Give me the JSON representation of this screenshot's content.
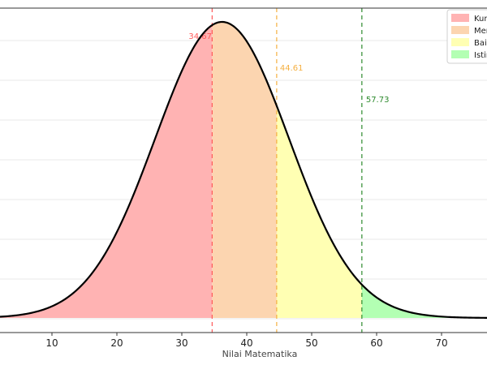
{
  "chart_data": {
    "type": "area",
    "xlabel": "Nilai Matematika",
    "x_ticks": [
      10,
      20,
      30,
      40,
      50,
      60,
      70
    ],
    "xlim": [
      2,
      77
    ],
    "ylim": [
      0,
      1
    ],
    "distribution": {
      "mean": 36.2,
      "sd": 10.3
    },
    "thresholds": [
      {
        "value": 34.67,
        "label": "34.67",
        "color": "#ff5a5a"
      },
      {
        "value": 44.61,
        "label": "44.61",
        "color": "#f5b042"
      },
      {
        "value": 57.73,
        "label": "57.73",
        "color": "#2e8b2e"
      }
    ],
    "regions": [
      {
        "name": "Kur",
        "from": 2,
        "to": 34.67,
        "color": "#ffb3b3"
      },
      {
        "name": "Mer",
        "from": 34.67,
        "to": 44.61,
        "color": "#fcd5b0"
      },
      {
        "name": "Baik",
        "from": 44.61,
        "to": 57.73,
        "color": "#ffffb3"
      },
      {
        "name": "Istir",
        "from": 57.73,
        "to": 77,
        "color": "#b3ffb3"
      }
    ],
    "grid": true,
    "legend_position": "top-right"
  }
}
